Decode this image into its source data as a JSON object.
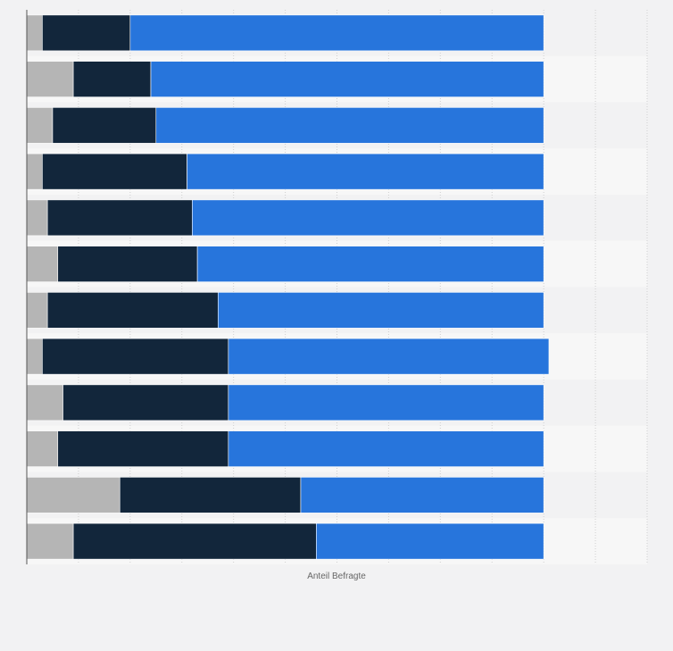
{
  "chart_data": {
    "type": "bar",
    "orientation": "horizontal",
    "stacked": true,
    "categories": [
      "",
      "",
      "",
      "",
      "",
      "",
      "",
      "",
      "",
      "",
      "",
      ""
    ],
    "series": [
      {
        "color": "#b5b5b5",
        "values": [
          3,
          9,
          5,
          3,
          4,
          6,
          4,
          3,
          7,
          6,
          18,
          9
        ]
      },
      {
        "color": "#12263b",
        "values": [
          17,
          15,
          20,
          28,
          28,
          27,
          33,
          36,
          32,
          33,
          35,
          47
        ]
      },
      {
        "color": "#2775dc",
        "values": [
          80,
          76,
          75,
          69,
          68,
          67,
          63,
          62,
          61,
          61,
          47,
          44
        ]
      }
    ],
    "xlabel": "Anteil Befragte",
    "ylabel": "",
    "xlim": [
      0,
      120
    ],
    "grid": true,
    "legend": "none"
  }
}
